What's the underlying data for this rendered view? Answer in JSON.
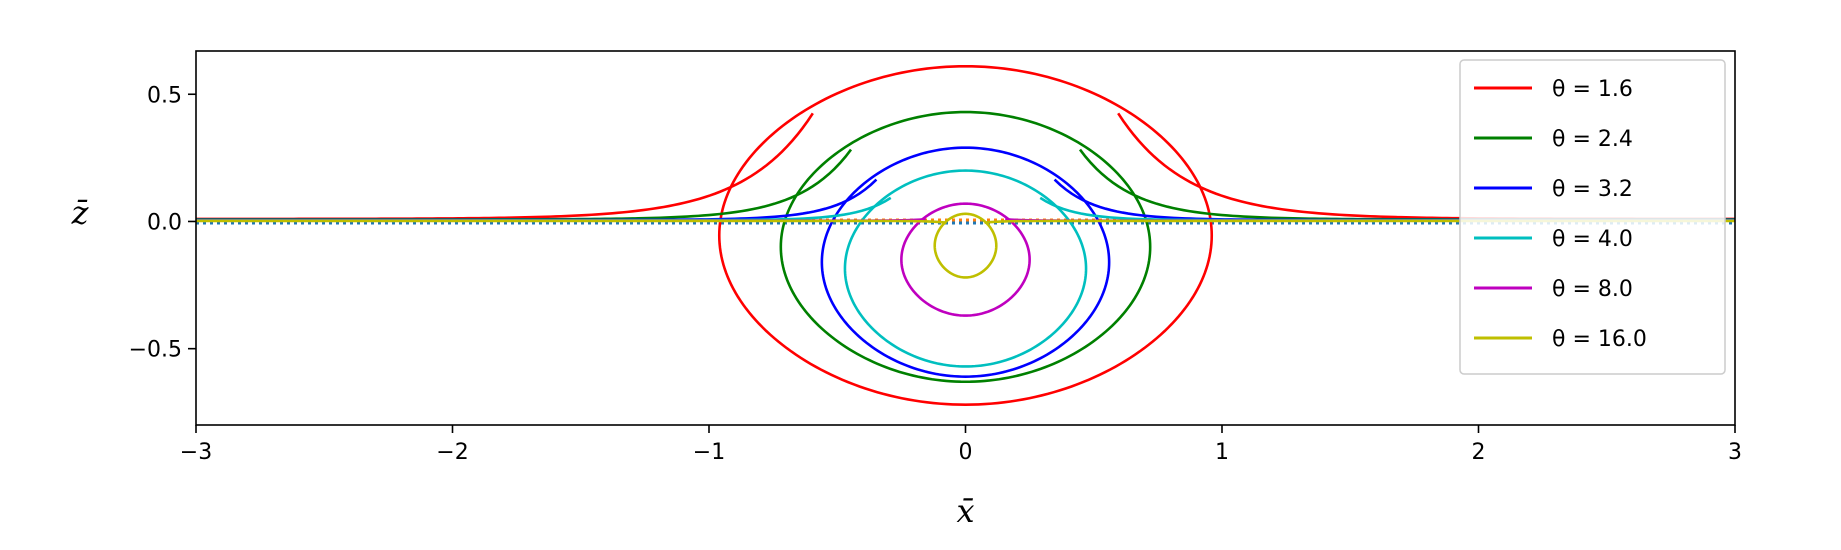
{
  "chart_data": {
    "type": "line",
    "xlabel": "x̄",
    "ylabel": "z̄",
    "xlim": [
      -3,
      3
    ],
    "ylim": [
      -0.8,
      0.67
    ],
    "x_ticks": [
      -3,
      -2,
      -1,
      0,
      1,
      2,
      3
    ],
    "x_tick_labels": [
      "−3",
      "−2",
      "−1",
      "0",
      "1",
      "2",
      "3"
    ],
    "y_ticks": [
      0.5,
      0.0,
      -0.5
    ],
    "y_tick_labels": [
      "0.5",
      "0.0",
      "−0.5"
    ],
    "grid": false,
    "legend_position": "upper right",
    "series": [
      {
        "name": "θ = 1.6",
        "color": "#ff0000",
        "closed_top": 0.61,
        "closed_bottom": -0.72,
        "half_width": 0.96,
        "tail_level": 0.01
      },
      {
        "name": "θ = 2.4",
        "color": "#008000",
        "closed_top": 0.43,
        "closed_bottom": -0.63,
        "half_width": 0.72,
        "tail_level": 0.008
      },
      {
        "name": "θ = 3.2",
        "color": "#0000ff",
        "closed_top": 0.29,
        "closed_bottom": -0.61,
        "half_width": 0.56,
        "tail_level": 0.006
      },
      {
        "name": "θ = 4.0",
        "color": "#00bfbf",
        "closed_top": 0.2,
        "closed_bottom": -0.57,
        "half_width": 0.47,
        "tail_level": 0.005
      },
      {
        "name": "θ = 8.0",
        "color": "#bf00bf",
        "closed_top": 0.07,
        "closed_bottom": -0.37,
        "half_width": 0.25,
        "tail_level": 0.003
      },
      {
        "name": "θ = 16.0",
        "color": "#bfbf00",
        "closed_top": 0.03,
        "closed_bottom": -0.22,
        "half_width": 0.12,
        "tail_level": 0.002
      }
    ],
    "baseline": {
      "y": 0.0,
      "style": "dotted",
      "colors": [
        "#ff7f0e",
        "#1f77b4"
      ]
    }
  }
}
